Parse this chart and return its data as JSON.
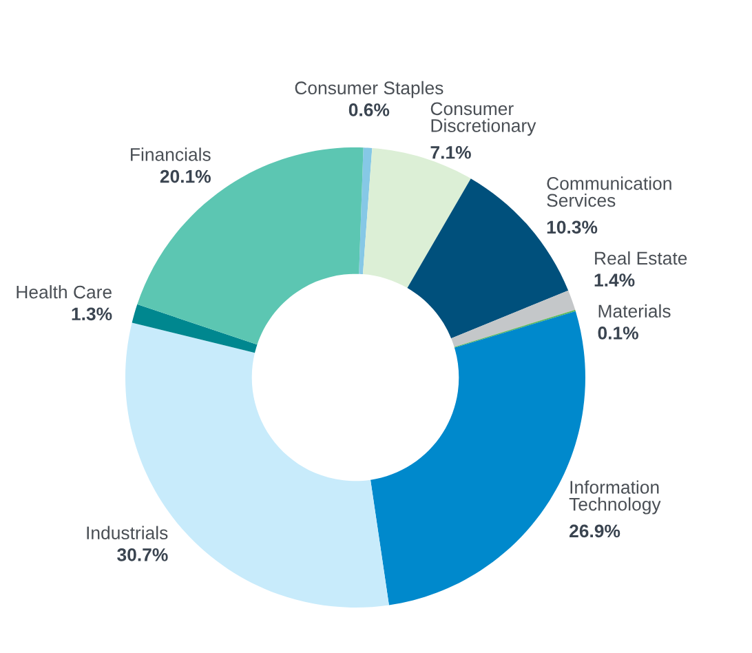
{
  "chart_data": {
    "type": "donut",
    "categories": [
      "Consumer Staples",
      "Consumer\nDiscretionary",
      "Communication\nServices",
      "Real Estate",
      "Materials",
      "Information\nTechnology",
      "Industrials",
      "Health Care",
      "Financials"
    ],
    "values": [
      0.6,
      7.1,
      10.3,
      1.4,
      0.1,
      26.9,
      30.7,
      1.3,
      20.1
    ],
    "value_labels": [
      "0.6%",
      "7.1%",
      "10.3%",
      "1.4%",
      "0.1%",
      "26.9%",
      "30.7%",
      "1.3%",
      "20.1%"
    ],
    "colors": [
      "#86c8e6",
      "#dcefd6",
      "#00507c",
      "#c4c7c9",
      "#5cb85c",
      "#0089cc",
      "#c8ebfb",
      "#00878f",
      "#5cc6b2"
    ]
  }
}
